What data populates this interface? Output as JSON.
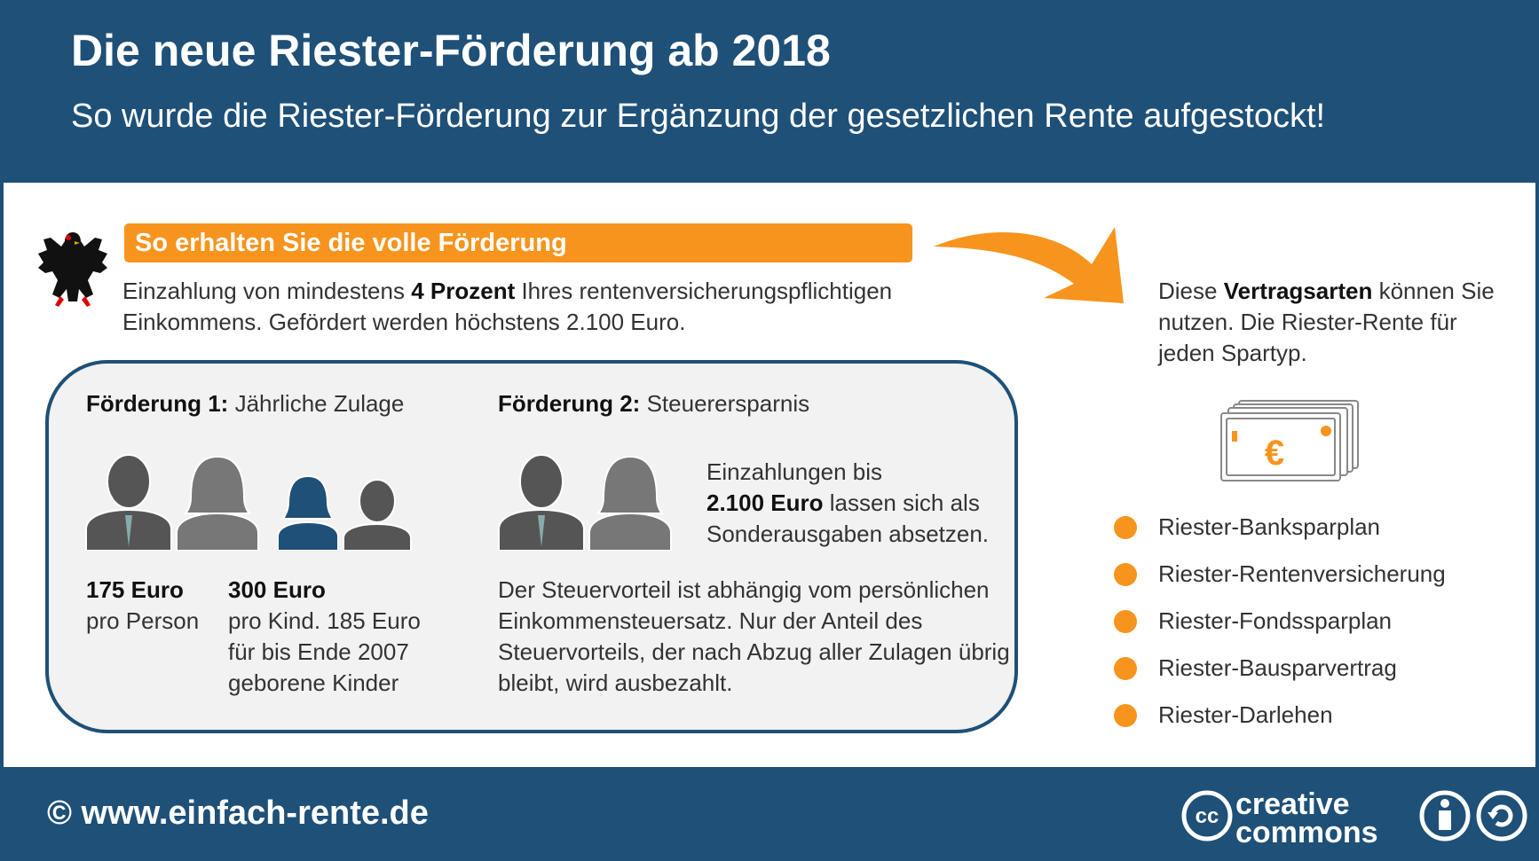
{
  "header": {
    "title": "Die neue Riester-Förderung ab 2018",
    "subtitle": "So wurde die Riester-Förderung zur Ergänzung der gesetzlichen Rente aufgestockt!"
  },
  "section": {
    "heading": "So erhalten Sie die volle Förderung",
    "intro": {
      "before": "Einzahlung von mindestens ",
      "bold": "4 Prozent",
      "after": " Ihres rentenversicherungspflichtigen Einkommens. Gefördert werden höchstens 2.100 Euro."
    }
  },
  "foerderung1": {
    "label": "Förderung 1:",
    "title": "Jährliche Zulage",
    "amounts": [
      {
        "bold": "175 Euro",
        "text": "pro Person"
      },
      {
        "bold": "300 Euro",
        "text": "pro Kind. 185 Euro für bis Ende 2007 geborene Kinder"
      }
    ]
  },
  "foerderung2": {
    "label": "Förderung 2:",
    "title": "Steuerersparnis",
    "note": {
      "before": "Einzahlungen bis ",
      "bold": "2.100 Euro",
      "after": " lassen sich als Sonderausgaben absetzen."
    },
    "explanation": "Der Steuervorteil ist abhängig vom persönlichen Einkommensteuersatz. Nur der Anteil des Steuervorteils, der nach Abzug aller Zulagen übrig bleibt, wird ausbezahlt."
  },
  "contracts": {
    "intro": {
      "before": "Diese ",
      "bold": "Vertragsarten",
      "after": " können Sie nutzen. Die Riester-Rente für jeden Spartyp."
    },
    "symbol": "€",
    "items": [
      "Riester-Banksparplan",
      "Riester-Rentenversicherung",
      "Riester-Fondssparplan",
      "Riester-Bausparvertrag",
      "Riester-Darlehen"
    ]
  },
  "footer": {
    "copyright": "© www.einfach-rente.de",
    "license": {
      "cc": "cc",
      "line1": "creative",
      "line2": "commons"
    }
  }
}
